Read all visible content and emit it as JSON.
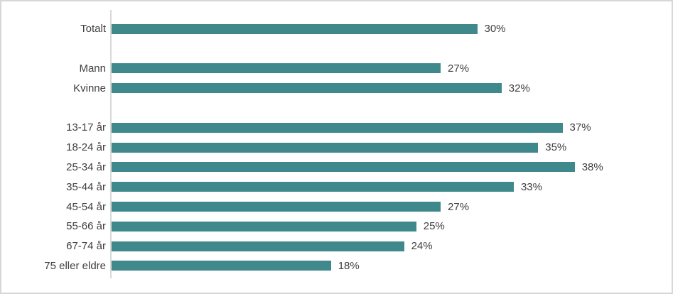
{
  "chart_data": {
    "type": "bar",
    "orientation": "horizontal",
    "title": "",
    "xlabel": "",
    "ylabel": "",
    "xlim": [
      0,
      45
    ],
    "grid": false,
    "legend": false,
    "bar_color": "#3f898d",
    "text_color": "#404040",
    "axis_line_color": "#d9d9d9",
    "frame_border_color": "#d7d7d7",
    "categories": [
      "Totalt",
      "Mann",
      "Kvinne",
      "13-17 år",
      "18-24 år",
      "25-34 år",
      "35-44 år",
      "45-54 år",
      "55-66 år",
      "67-74 år",
      "75 eller eldre"
    ],
    "values": [
      30,
      27,
      32,
      37,
      35,
      38,
      33,
      27,
      25,
      24,
      18
    ],
    "items": [
      {
        "label": "Totalt",
        "value": 30,
        "value_label": "30%",
        "group": 0
      },
      {
        "label": "Mann",
        "value": 27,
        "value_label": "27%",
        "group": 1
      },
      {
        "label": "Kvinne",
        "value": 32,
        "value_label": "32%",
        "group": 1
      },
      {
        "label": "13-17 år",
        "value": 37,
        "value_label": "37%",
        "group": 2
      },
      {
        "label": "18-24 år",
        "value": 35,
        "value_label": "35%",
        "group": 2
      },
      {
        "label": "25-34 år",
        "value": 38,
        "value_label": "38%",
        "group": 2
      },
      {
        "label": "35-44 år",
        "value": 33,
        "value_label": "33%",
        "group": 2
      },
      {
        "label": "45-54 år",
        "value": 27,
        "value_label": "27%",
        "group": 2
      },
      {
        "label": "55-66 år",
        "value": 25,
        "value_label": "25%",
        "group": 2
      },
      {
        "label": "67-74 år",
        "value": 24,
        "value_label": "24%",
        "group": 2
      },
      {
        "label": "75 eller eldre",
        "value": 18,
        "value_label": "18%",
        "group": 2
      }
    ]
  }
}
